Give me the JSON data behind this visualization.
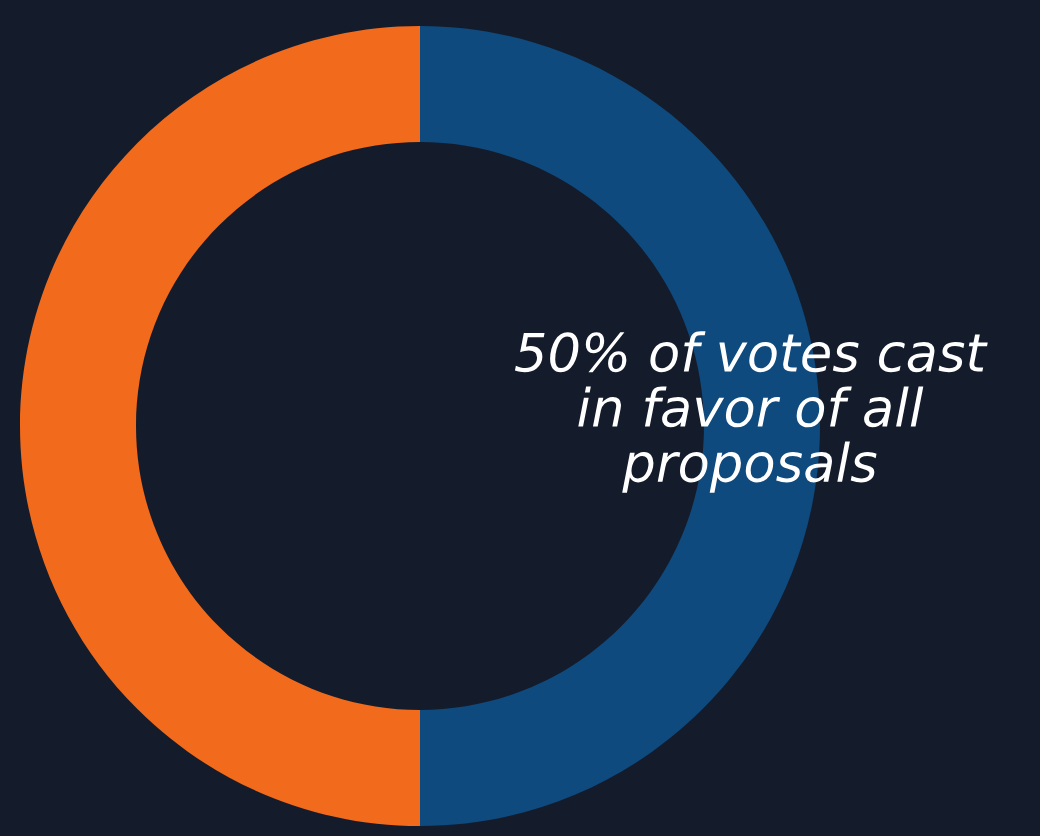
{
  "chart_data": {
    "type": "donut",
    "categories": [
      null,
      null
    ],
    "values": [
      50,
      50
    ],
    "colors": [
      "#0f4a7e",
      "#f26a1b"
    ],
    "annotations": [
      "50% of votes cast\nin favor of all\nproposals"
    ]
  }
}
